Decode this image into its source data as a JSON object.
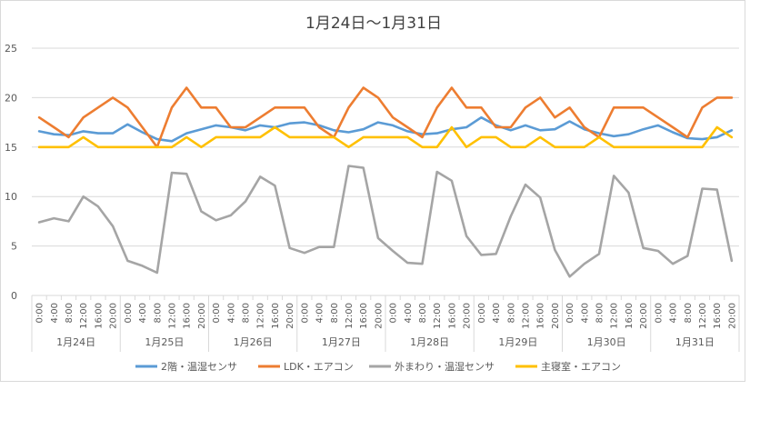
{
  "chart_data": {
    "type": "line",
    "title": "1月24日～1月31日",
    "xlabel": "",
    "ylabel": "",
    "ylim": [
      0,
      25
    ],
    "yticks": [
      0,
      5,
      10,
      15,
      20,
      25
    ],
    "grid": true,
    "legend_position": "bottom",
    "days": [
      "1月24日",
      "1月25日",
      "1月26日",
      "1月27日",
      "1月28日",
      "1月29日",
      "1月30日",
      "1月31日"
    ],
    "time_labels": [
      "0:00",
      "4:00",
      "8:00",
      "12:00",
      "16:00",
      "20:00"
    ],
    "x": [
      "1/24 0:00",
      "1/24 4:00",
      "1/24 8:00",
      "1/24 12:00",
      "1/24 16:00",
      "1/24 20:00",
      "1/25 0:00",
      "1/25 4:00",
      "1/25 8:00",
      "1/25 12:00",
      "1/25 16:00",
      "1/25 20:00",
      "1/26 0:00",
      "1/26 4:00",
      "1/26 8:00",
      "1/26 12:00",
      "1/26 16:00",
      "1/26 20:00",
      "1/27 0:00",
      "1/27 4:00",
      "1/27 8:00",
      "1/27 12:00",
      "1/27 16:00",
      "1/27 20:00",
      "1/28 0:00",
      "1/28 4:00",
      "1/28 8:00",
      "1/28 12:00",
      "1/28 16:00",
      "1/28 20:00",
      "1/29 0:00",
      "1/29 4:00",
      "1/29 8:00",
      "1/29 12:00",
      "1/29 16:00",
      "1/29 20:00",
      "1/30 0:00",
      "1/30 4:00",
      "1/30 8:00",
      "1/30 12:00",
      "1/30 16:00",
      "1/30 20:00",
      "1/31 0:00",
      "1/31 4:00",
      "1/31 8:00",
      "1/31 12:00",
      "1/31 16:00",
      "1/31 20:00"
    ],
    "series": [
      {
        "name": "2階・温湿センサ",
        "color": "#5b9bd5",
        "values": [
          16.6,
          16.3,
          16.2,
          16.6,
          16.4,
          16.4,
          17.3,
          16.5,
          15.8,
          15.6,
          16.4,
          16.8,
          17.2,
          17.0,
          16.7,
          17.2,
          17.0,
          17.4,
          17.5,
          17.2,
          16.7,
          16.5,
          16.8,
          17.5,
          17.2,
          16.6,
          16.3,
          16.4,
          16.8,
          17.0,
          18.0,
          17.2,
          16.7,
          17.2,
          16.7,
          16.8,
          17.6,
          16.8,
          16.4,
          16.1,
          16.3,
          16.8,
          17.2,
          16.5,
          15.9,
          15.8,
          16.0,
          16.7
        ]
      },
      {
        "name": "LDK・エアコン",
        "color": "#ed7d31",
        "values": [
          18,
          17,
          16,
          18,
          19,
          20,
          19,
          17,
          15,
          19,
          21,
          19,
          19,
          17,
          17,
          18,
          19,
          19,
          19,
          17,
          16,
          19,
          21,
          20,
          18,
          17,
          16,
          19,
          21,
          19,
          19,
          17,
          17,
          19,
          20,
          18,
          19,
          17,
          16,
          19,
          19,
          19,
          18,
          17,
          16,
          19,
          20,
          20
        ]
      },
      {
        "name": "外まわり・温湿センサ",
        "color": "#a5a5a5",
        "values": [
          7.4,
          7.8,
          7.5,
          10.0,
          9.0,
          7.0,
          3.5,
          3.0,
          2.3,
          12.4,
          12.3,
          8.5,
          7.6,
          8.1,
          9.5,
          12.0,
          11.1,
          4.8,
          4.3,
          4.9,
          4.9,
          13.1,
          12.9,
          5.8,
          4.5,
          3.3,
          3.2,
          12.5,
          11.6,
          6.0,
          4.1,
          4.2,
          8.0,
          11.2,
          9.9,
          4.6,
          1.9,
          3.2,
          4.2,
          12.1,
          10.4,
          4.8,
          4.5,
          3.2,
          4.0,
          10.8,
          10.7,
          3.5
        ]
      },
      {
        "name": "主寝室・エアコン",
        "color": "#ffc000",
        "values": [
          15,
          15,
          15,
          16,
          15,
          15,
          15,
          15,
          15,
          15,
          16,
          15,
          16,
          16,
          16,
          16,
          17,
          16,
          16,
          16,
          16,
          15,
          16,
          16,
          16,
          16,
          15,
          15,
          17,
          15,
          16,
          16,
          15,
          15,
          16,
          15,
          15,
          15,
          16,
          15,
          15,
          15,
          15,
          15,
          15,
          15,
          17,
          16
        ]
      }
    ]
  }
}
